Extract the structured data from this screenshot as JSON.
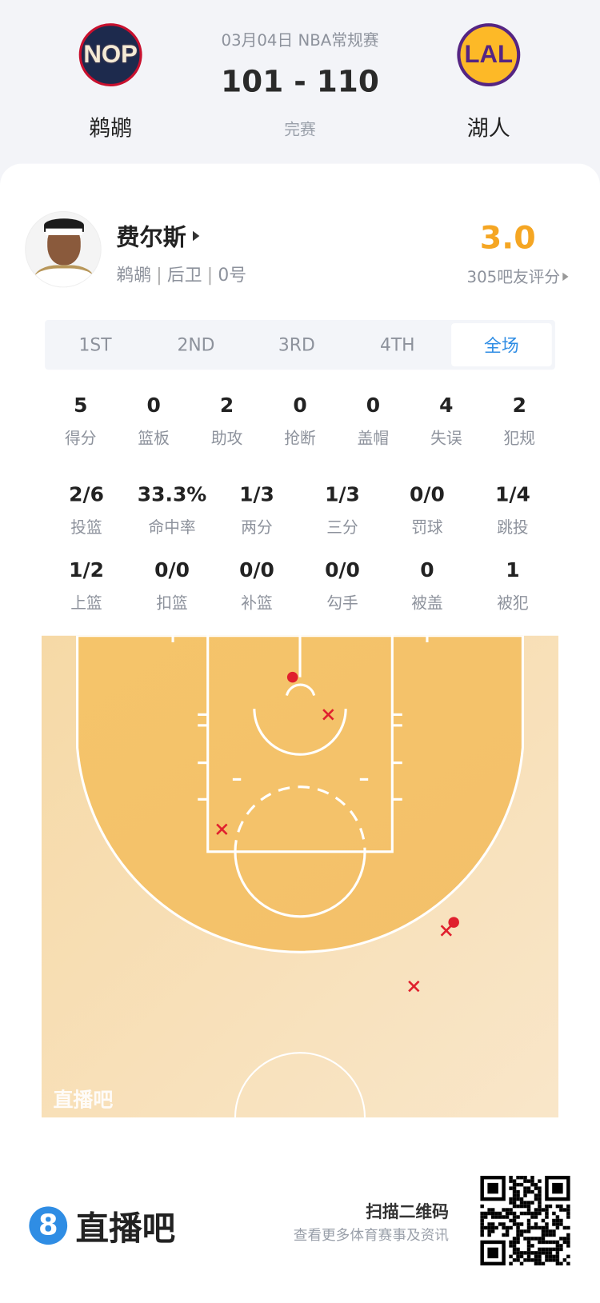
{
  "match": {
    "date_league": "03月04日 NBA常规赛",
    "score": "101 - 110",
    "status": "完赛",
    "home": {
      "abbr": "NOP",
      "name": "鹈鹕"
    },
    "away": {
      "abbr": "LAL",
      "name": "湖人"
    }
  },
  "player": {
    "name": "费尔斯",
    "team": "鹈鹕",
    "position": "后卫",
    "number": "0号",
    "rating": "3.0",
    "rating_label": "305吧友评分"
  },
  "tabs": [
    {
      "label": "1ST"
    },
    {
      "label": "2ND"
    },
    {
      "label": "3RD"
    },
    {
      "label": "4TH"
    },
    {
      "label": "全场",
      "selected": true
    }
  ],
  "stats_row1": [
    {
      "v": "5",
      "l": "得分"
    },
    {
      "v": "0",
      "l": "篮板"
    },
    {
      "v": "2",
      "l": "助攻"
    },
    {
      "v": "0",
      "l": "抢断"
    },
    {
      "v": "0",
      "l": "盖帽"
    },
    {
      "v": "4",
      "l": "失误"
    },
    {
      "v": "2",
      "l": "犯规"
    }
  ],
  "stats_row2": [
    {
      "v": "2/6",
      "l": "投篮"
    },
    {
      "v": "33.3%",
      "l": "命中率"
    },
    {
      "v": "1/3",
      "l": "两分"
    },
    {
      "v": "1/3",
      "l": "三分"
    },
    {
      "v": "0/0",
      "l": "罚球"
    },
    {
      "v": "1/4",
      "l": "跳投"
    }
  ],
  "stats_row3": [
    {
      "v": "1/2",
      "l": "上篮"
    },
    {
      "v": "0/0",
      "l": "扣篮"
    },
    {
      "v": "0/0",
      "l": "补篮"
    },
    {
      "v": "0/0",
      "l": "勾手"
    },
    {
      "v": "0",
      "l": "被盖"
    },
    {
      "v": "1",
      "l": "被犯"
    }
  ],
  "shot_chart": {
    "watermark": "直播吧",
    "made": 2,
    "missed": 4
  },
  "footer": {
    "brand": "直播吧",
    "brand_mark": "8",
    "qr_title": "扫描二维码",
    "qr_sub": "查看更多体育赛事及资讯"
  },
  "colors": {
    "accent": "#2f8de4",
    "rating": "#f5a623",
    "shot": "#e0202e",
    "court_inner": "#f5c468",
    "court_outer": "#f8e3c0"
  }
}
